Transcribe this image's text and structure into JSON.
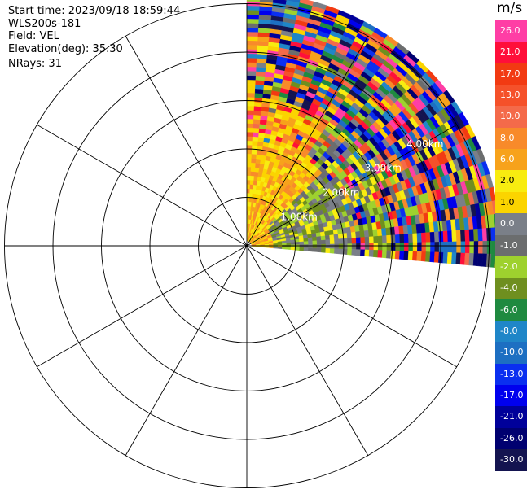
{
  "info": {
    "start_time": "Start time: 2023/09/18 18:59:44",
    "instrument": "WLS200s-181",
    "field": "Field: VEL",
    "elevation": "Elevation(deg): 35.30",
    "nrays": "NRays: 31"
  },
  "colorbar": {
    "unit": "m/s",
    "levels": [
      {
        "label": "26.0",
        "color": "#ff3ea5"
      },
      {
        "label": "21.0",
        "color": "#ff0f3a"
      },
      {
        "label": "17.0",
        "color": "#f23a12"
      },
      {
        "label": "13.0",
        "color": "#f5512a"
      },
      {
        "label": "10.0",
        "color": "#f46a4a"
      },
      {
        "label": "8.0",
        "color": "#f88a2a"
      },
      {
        "label": "6.0",
        "color": "#f7a21b"
      },
      {
        "label": "2.0",
        "color": "#f8ec10"
      },
      {
        "label": "1.0",
        "color": "#fbd400"
      },
      {
        "label": "0.0",
        "color": "#7a7f88"
      },
      {
        "label": "-1.0",
        "color": "#6b6d6e"
      },
      {
        "label": "-2.0",
        "color": "#9ed12e"
      },
      {
        "label": "-4.0",
        "color": "#6f8f1f"
      },
      {
        "label": "-6.0",
        "color": "#1f8a40"
      },
      {
        "label": "-8.0",
        "color": "#1f86c8"
      },
      {
        "label": "-10.0",
        "color": "#1d6fc2"
      },
      {
        "label": "-13.0",
        "color": "#0a2ff0"
      },
      {
        "label": "-17.0",
        "color": "#0000ee"
      },
      {
        "label": "-21.0",
        "color": "#00009a"
      },
      {
        "label": "-26.0",
        "color": "#000070"
      },
      {
        "label": "-30.0",
        "color": "#141450"
      }
    ]
  },
  "chart_data": {
    "type": "heatmap",
    "projection": "polar-ppi",
    "field": "VEL",
    "unit": "m/s",
    "sector_azimuth_deg": [
      0,
      95
    ],
    "range_rings_km": [
      1.0,
      2.0,
      3.0,
      4.0,
      5.0
    ],
    "ring_labels": [
      "1.00km",
      "2.00km",
      "3.00km",
      "4.00km"
    ],
    "spokes_deg": [
      0,
      30,
      60,
      90,
      120,
      150,
      180,
      210,
      240,
      270,
      300,
      330
    ],
    "nrays": 31,
    "value_range": [
      -30.0,
      30.0
    ]
  }
}
